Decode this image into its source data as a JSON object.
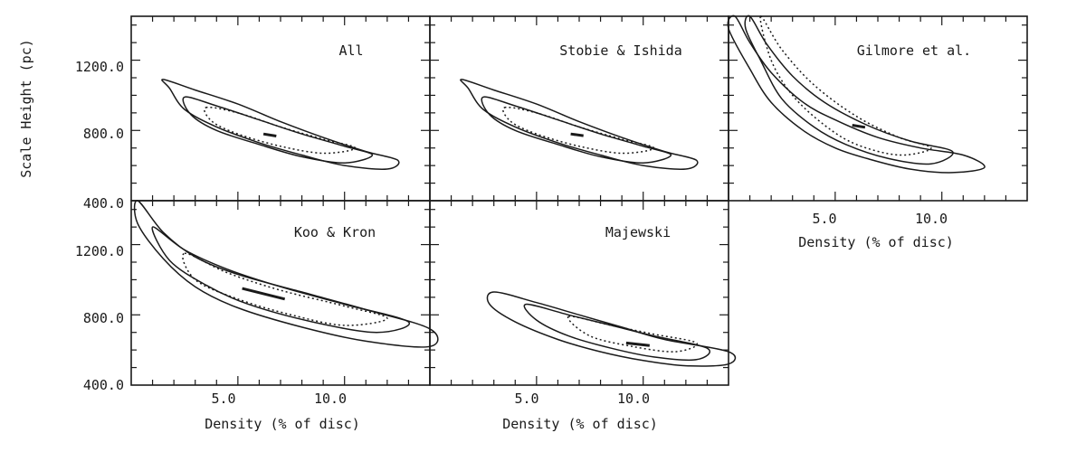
{
  "chart_data": {
    "type": "contour",
    "shared_ylabel": "Scale Height (pc)",
    "shared_xlabel": "Density (% of disc)",
    "xlim": [
      0,
      14
    ],
    "ylim": [
      400,
      1450
    ],
    "y_ticks": [
      "1200.0",
      "800.0",
      "400.0"
    ],
    "y_tick_values": [
      1200,
      800,
      400
    ],
    "x_ticks": [
      "5.0",
      "10.0"
    ],
    "x_tick_values": [
      5,
      10
    ],
    "panels": [
      {
        "title": "All",
        "contours": [
          {
            "style": "solid",
            "points": [
              [
                1.5,
                1090
              ],
              [
                3,
                1030
              ],
              [
                5,
                950
              ],
              [
                7,
                850
              ],
              [
                9,
                760
              ],
              [
                11,
                680
              ],
              [
                12.5,
                630
              ],
              [
                12,
                580
              ],
              [
                10,
                600
              ],
              [
                8,
                660
              ],
              [
                6,
                730
              ],
              [
                4,
                820
              ],
              [
                2.5,
                920
              ],
              [
                1.8,
                1040
              ]
            ]
          },
          {
            "style": "solid",
            "points": [
              [
                2.5,
                990
              ],
              [
                4,
                940
              ],
              [
                6,
                860
              ],
              [
                8,
                780
              ],
              [
                10,
                710
              ],
              [
                11.3,
                660
              ],
              [
                10,
                615
              ],
              [
                8,
                650
              ],
              [
                6,
                720
              ],
              [
                4,
                800
              ],
              [
                2.8,
                890
              ]
            ]
          },
          {
            "style": "dotted",
            "points": [
              [
                3.5,
                930
              ],
              [
                5,
                900
              ],
              [
                7,
                820
              ],
              [
                9,
                750
              ],
              [
                10.5,
                700
              ],
              [
                9,
                670
              ],
              [
                7,
                710
              ],
              [
                5,
                780
              ],
              [
                3.8,
                850
              ]
            ]
          },
          {
            "style": "solid",
            "points": [
              [
                6.2,
                780
              ],
              [
                6.8,
                768
              ]
            ]
          }
        ]
      },
      {
        "title": "Stobie & Ishida",
        "contours": [
          {
            "style": "solid",
            "points": [
              [
                1.5,
                1090
              ],
              [
                3,
                1030
              ],
              [
                5,
                950
              ],
              [
                7,
                850
              ],
              [
                9,
                760
              ],
              [
                11,
                680
              ],
              [
                12.5,
                630
              ],
              [
                12,
                580
              ],
              [
                10,
                600
              ],
              [
                8,
                660
              ],
              [
                6,
                730
              ],
              [
                4,
                820
              ],
              [
                2.5,
                920
              ],
              [
                1.8,
                1040
              ]
            ]
          },
          {
            "style": "solid",
            "points": [
              [
                2.5,
                990
              ],
              [
                4,
                940
              ],
              [
                6,
                860
              ],
              [
                8,
                780
              ],
              [
                10,
                710
              ],
              [
                11.3,
                660
              ],
              [
                10,
                615
              ],
              [
                8,
                650
              ],
              [
                6,
                720
              ],
              [
                4,
                800
              ],
              [
                2.8,
                890
              ]
            ]
          },
          {
            "style": "dotted",
            "points": [
              [
                3.5,
                930
              ],
              [
                5,
                900
              ],
              [
                7,
                820
              ],
              [
                9,
                750
              ],
              [
                10.5,
                700
              ],
              [
                9,
                670
              ],
              [
                7,
                710
              ],
              [
                5,
                780
              ],
              [
                3.8,
                850
              ]
            ]
          },
          {
            "style": "solid",
            "points": [
              [
                6.6,
                780
              ],
              [
                7.2,
                770
              ]
            ]
          }
        ]
      },
      {
        "title": "Gilmore et al.",
        "contours": [
          {
            "style": "solid",
            "points": [
              [
                0.3,
                1450
              ],
              [
                1,
                1300
              ],
              [
                2,
                1130
              ],
              [
                3.5,
                960
              ],
              [
                5,
                860
              ],
              [
                7,
                760
              ],
              [
                9,
                700
              ],
              [
                11,
                660
              ],
              [
                12,
                590
              ],
              [
                10.5,
                560
              ],
              [
                8.5,
                580
              ],
              [
                6.5,
                640
              ],
              [
                5,
                700
              ],
              [
                3.5,
                800
              ],
              [
                2,
                960
              ],
              [
                1,
                1150
              ],
              [
                0,
                1380
              ]
            ]
          },
          {
            "style": "solid",
            "points": [
              [
                1,
                1450
              ],
              [
                1.8,
                1290
              ],
              [
                3,
                1110
              ],
              [
                4.5,
                960
              ],
              [
                6.5,
                830
              ],
              [
                8.5,
                740
              ],
              [
                10.5,
                680
              ],
              [
                9.5,
                610
              ],
              [
                7.5,
                640
              ],
              [
                5.5,
                720
              ],
              [
                4,
                820
              ],
              [
                2.5,
                980
              ],
              [
                1.5,
                1200
              ],
              [
                0.8,
                1380
              ]
            ]
          },
          {
            "style": "dotted",
            "points": [
              [
                1.5,
                1450
              ],
              [
                2.5,
                1260
              ],
              [
                4,
                1060
              ],
              [
                6,
                880
              ],
              [
                8,
                760
              ],
              [
                9.5,
                700
              ],
              [
                8,
                660
              ],
              [
                6,
                720
              ],
              [
                4.5,
                830
              ],
              [
                3,
                1000
              ],
              [
                2,
                1200
              ]
            ]
          },
          {
            "style": "solid",
            "points": [
              [
                5.8,
                830
              ],
              [
                6.4,
                818
              ]
            ]
          }
        ]
      },
      {
        "title": "Koo & Kron",
        "contours": [
          {
            "style": "solid",
            "points": [
              [
                0.3,
                1450
              ],
              [
                1.5,
                1270
              ],
              [
                3,
                1130
              ],
              [
                5,
                1030
              ],
              [
                8,
                930
              ],
              [
                11,
                830
              ],
              [
                14,
                720
              ],
              [
                14,
                620
              ],
              [
                11,
                650
              ],
              [
                8,
                730
              ],
              [
                5,
                840
              ],
              [
                3,
                960
              ],
              [
                1.5,
                1120
              ],
              [
                0.3,
                1320
              ]
            ]
          },
          {
            "style": "solid",
            "points": [
              [
                1,
                1300
              ],
              [
                2.5,
                1170
              ],
              [
                4.5,
                1060
              ],
              [
                7,
                960
              ],
              [
                10,
                860
              ],
              [
                13,
                760
              ],
              [
                11.5,
                700
              ],
              [
                8.5,
                760
              ],
              [
                5.5,
                860
              ],
              [
                3.5,
                970
              ],
              [
                1.8,
                1110
              ]
            ]
          },
          {
            "style": "dotted",
            "points": [
              [
                2.5,
                1150
              ],
              [
                4.5,
                1040
              ],
              [
                7,
                940
              ],
              [
                10,
                850
              ],
              [
                12,
                780
              ],
              [
                10,
                740
              ],
              [
                7.5,
                800
              ],
              [
                5,
                890
              ],
              [
                3,
                1000
              ]
            ]
          },
          {
            "style": "solid",
            "points": [
              [
                5.2,
                950
              ],
              [
                7.2,
                890
              ]
            ]
          }
        ]
      },
      {
        "title": "Majewski",
        "contours": [
          {
            "style": "solid",
            "points": [
              [
                3,
                930
              ],
              [
                5,
                870
              ],
              [
                7,
                800
              ],
              [
                9,
                730
              ],
              [
                11,
                660
              ],
              [
                14,
                590
              ],
              [
                14,
                520
              ],
              [
                12,
                510
              ],
              [
                10,
                540
              ],
              [
                8,
                590
              ],
              [
                6,
                660
              ],
              [
                4,
                760
              ],
              [
                2.8,
                860
              ]
            ]
          },
          {
            "style": "solid",
            "points": [
              [
                4.5,
                860
              ],
              [
                6.5,
                800
              ],
              [
                8.5,
                740
              ],
              [
                10.5,
                680
              ],
              [
                13,
                610
              ],
              [
                12.5,
                545
              ],
              [
                10.5,
                560
              ],
              [
                8.5,
                610
              ],
              [
                6.5,
                680
              ],
              [
                5,
                770
              ]
            ]
          },
          {
            "style": "dotted",
            "points": [
              [
                6.5,
                790
              ],
              [
                8.5,
                740
              ],
              [
                10.5,
                690
              ],
              [
                12.5,
                640
              ],
              [
                11.5,
                590
              ],
              [
                9.5,
                620
              ],
              [
                7.5,
                680
              ]
            ]
          },
          {
            "style": "solid",
            "points": [
              [
                9.2,
                640
              ],
              [
                10.3,
                625
              ]
            ]
          }
        ]
      }
    ]
  }
}
